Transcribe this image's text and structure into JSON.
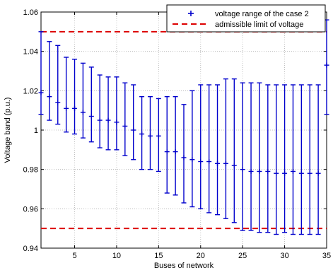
{
  "chart_data": {
    "type": "errorbar",
    "title": "",
    "xlabel": "Buses of network",
    "ylabel": "Voltage band (p.u.)",
    "xlim": [
      1,
      35
    ],
    "ylim": [
      0.94,
      1.06
    ],
    "xticks": [
      5,
      10,
      15,
      20,
      25,
      30,
      35
    ],
    "xtick_labels": [
      "5",
      "10",
      "15",
      "20",
      "25",
      "30",
      "35"
    ],
    "yticks": [
      0.94,
      0.96,
      0.98,
      1.0,
      1.02,
      1.04,
      1.06
    ],
    "ytick_labels": [
      "0.94",
      "0.96",
      "0.98",
      "1",
      "1.02",
      "1.04",
      "1.06"
    ],
    "grid": true,
    "legend_position": "top-right",
    "series": [
      {
        "name": "voltage range of the case 2",
        "color": "#0000cc",
        "marker": "plus",
        "points": [
          {
            "x": 1,
            "low": 1.008,
            "mid": 1.019,
            "high": 1.05
          },
          {
            "x": 2,
            "low": 1.005,
            "mid": 1.017,
            "high": 1.045
          },
          {
            "x": 3,
            "low": 1.003,
            "mid": 1.014,
            "high": 1.043
          },
          {
            "x": 4,
            "low": 0.999,
            "mid": 1.011,
            "high": 1.037
          },
          {
            "x": 5,
            "low": 0.998,
            "mid": 1.011,
            "high": 1.036
          },
          {
            "x": 6,
            "low": 0.996,
            "mid": 1.009,
            "high": 1.034
          },
          {
            "x": 7,
            "low": 0.994,
            "mid": 1.007,
            "high": 1.032
          },
          {
            "x": 8,
            "low": 0.991,
            "mid": 1.005,
            "high": 1.028
          },
          {
            "x": 9,
            "low": 0.99,
            "mid": 1.005,
            "high": 1.027
          },
          {
            "x": 10,
            "low": 0.99,
            "mid": 1.004,
            "high": 1.027
          },
          {
            "x": 11,
            "low": 0.987,
            "mid": 1.002,
            "high": 1.024
          },
          {
            "x": 12,
            "low": 0.985,
            "mid": 1.0,
            "high": 1.023
          },
          {
            "x": 13,
            "low": 0.98,
            "mid": 0.998,
            "high": 1.017
          },
          {
            "x": 14,
            "low": 0.98,
            "mid": 0.997,
            "high": 1.017
          },
          {
            "x": 15,
            "low": 0.979,
            "mid": 0.997,
            "high": 1.016
          },
          {
            "x": 16,
            "low": 0.968,
            "mid": 0.989,
            "high": 1.017
          },
          {
            "x": 17,
            "low": 0.967,
            "mid": 0.989,
            "high": 1.017
          },
          {
            "x": 18,
            "low": 0.963,
            "mid": 0.986,
            "high": 1.013
          },
          {
            "x": 19,
            "low": 0.961,
            "mid": 0.985,
            "high": 1.02
          },
          {
            "x": 20,
            "low": 0.96,
            "mid": 0.984,
            "high": 1.023
          },
          {
            "x": 21,
            "low": 0.958,
            "mid": 0.984,
            "high": 1.023
          },
          {
            "x": 22,
            "low": 0.957,
            "mid": 0.983,
            "high": 1.023
          },
          {
            "x": 23,
            "low": 0.955,
            "mid": 0.983,
            "high": 1.026
          },
          {
            "x": 24,
            "low": 0.953,
            "mid": 0.982,
            "high": 1.026
          },
          {
            "x": 25,
            "low": 0.949,
            "mid": 0.98,
            "high": 1.024
          },
          {
            "x": 26,
            "low": 0.949,
            "mid": 0.979,
            "high": 1.024
          },
          {
            "x": 27,
            "low": 0.948,
            "mid": 0.979,
            "high": 1.024
          },
          {
            "x": 28,
            "low": 0.948,
            "mid": 0.979,
            "high": 1.023
          },
          {
            "x": 29,
            "low": 0.947,
            "mid": 0.978,
            "high": 1.023
          },
          {
            "x": 30,
            "low": 0.948,
            "mid": 0.978,
            "high": 1.023
          },
          {
            "x": 31,
            "low": 0.947,
            "mid": 0.979,
            "high": 1.023
          },
          {
            "x": 32,
            "low": 0.947,
            "mid": 0.978,
            "high": 1.023
          },
          {
            "x": 33,
            "low": 0.947,
            "mid": 0.978,
            "high": 1.023
          },
          {
            "x": 34,
            "low": 0.947,
            "mid": 0.978,
            "high": 1.023
          },
          {
            "x": 35,
            "low": 1.008,
            "mid": 1.033,
            "high": 1.056
          }
        ]
      },
      {
        "name": "admissible limit of voltage",
        "color": "#dd0000",
        "style": "dashed",
        "levels": [
          1.05,
          0.95
        ]
      }
    ]
  }
}
